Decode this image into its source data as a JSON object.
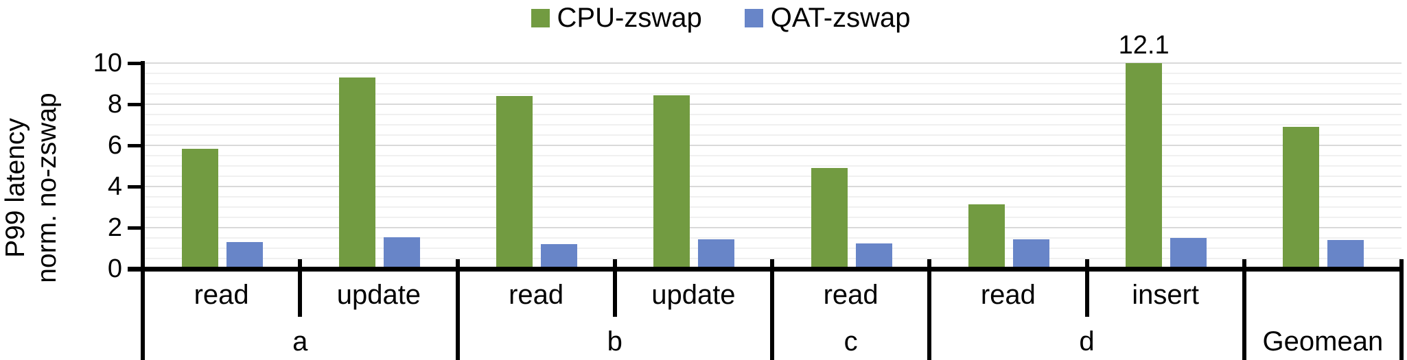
{
  "figure": {
    "background": "#FFFFFF"
  },
  "chart_data": {
    "type": "bar",
    "title": "",
    "ylabel": "P99 latency norm. no-zswap",
    "ylabel_lines": [
      "P99 latency",
      "norm. no-zswap"
    ],
    "xlabel": "",
    "ylim": [
      0,
      10
    ],
    "yticks": [
      0,
      2,
      4,
      6,
      8,
      10
    ],
    "minor_gridline_step": 0.5,
    "major_gridline_step": 2,
    "grid": true,
    "legend_position": "top-center",
    "groups": [
      {
        "label": "a",
        "categories": [
          "read",
          "update"
        ]
      },
      {
        "label": "b",
        "categories": [
          "read",
          "update"
        ]
      },
      {
        "label": "c",
        "categories": [
          "read"
        ]
      },
      {
        "label": "d",
        "categories": [
          "read",
          "insert"
        ]
      },
      {
        "label": "Geomean",
        "categories": [
          ""
        ]
      }
    ],
    "series": [
      {
        "name": "CPU-zswap",
        "color": "#729B41",
        "values": [
          5.85,
          9.3,
          8.4,
          8.45,
          4.9,
          3.15,
          12.1,
          6.9
        ]
      },
      {
        "name": "QAT-zswap",
        "color": "#6885C8",
        "values": [
          1.3,
          1.55,
          1.2,
          1.45,
          1.25,
          1.45,
          1.5,
          1.4
        ]
      }
    ],
    "annotations": [
      {
        "category_index": 6,
        "series_index": 0,
        "text": "12.1"
      }
    ]
  }
}
